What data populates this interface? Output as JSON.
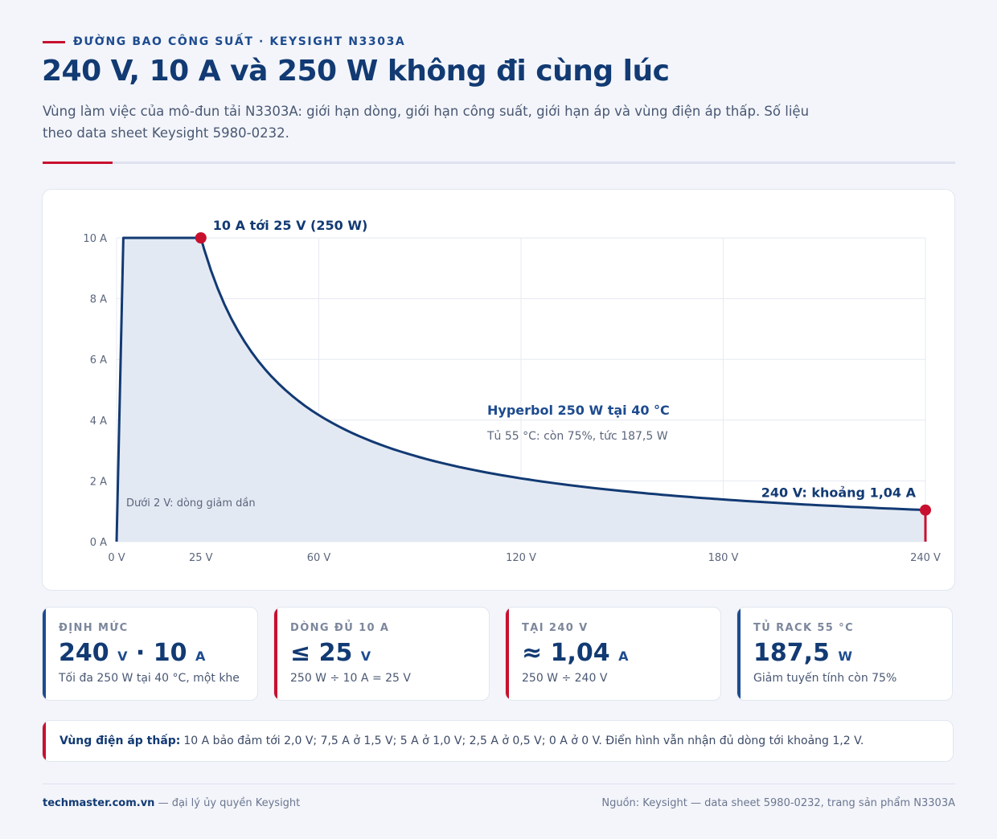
{
  "header": {
    "eyebrow": "ĐƯỜNG BAO CÔNG SUẤT · KEYSIGHT N3303A",
    "title": "240 V, 10 A và 250 W không đi cùng lúc",
    "subtitle": "Vùng làm việc của mô-đun tải N3303A: giới hạn dòng, giới hạn công suất, giới hạn áp và vùng điện áp thấp. Số liệu theo data sheet Keysight 5980-0232."
  },
  "colors": {
    "navy": "#123a73",
    "red": "#c8102e",
    "fill": "#e3e9f3",
    "grid": "#e6eaf1"
  },
  "chart_data": {
    "type": "area",
    "x_unit": "V",
    "y_unit": "A",
    "xlim": [
      0,
      240
    ],
    "ylim": [
      0,
      10
    ],
    "x_ticks": [
      0,
      25,
      60,
      120,
      180,
      240
    ],
    "y_ticks": [
      0,
      2,
      4,
      6,
      8,
      10
    ],
    "x_tick_labels": [
      "0 V",
      "25 V",
      "60 V",
      "120 V",
      "180 V",
      "240 V"
    ],
    "y_tick_labels": [
      "0 A",
      "2 A",
      "4 A",
      "6 A",
      "8 A",
      "10 A"
    ],
    "grid": true,
    "series": [
      {
        "x": [
          0,
          2,
          25,
          240
        ],
        "y": [
          0,
          10,
          10,
          1.04
        ],
        "segments": [
          "linear",
          "linear",
          "hyperbola P=250 W",
          "vertical drop to 0 A at 240 V"
        ]
      }
    ],
    "points": [
      {
        "x": 25,
        "y": 10,
        "label": "10 A tới 25 V (250 W)"
      },
      {
        "x": 240,
        "y": 1.04,
        "label": "240 V: khoảng 1,04 A"
      }
    ],
    "annotations": [
      {
        "text": "Hyperbol 250 W tại 40 °C",
        "style": "strong"
      },
      {
        "text": "Tủ 55 °C: còn 75%, tức 187,5 W",
        "style": "muted"
      },
      {
        "text": "Dưới 2 V: dòng giảm dần",
        "style": "small"
      }
    ]
  },
  "kpis": [
    {
      "label": "ĐỊNH MỨC",
      "value1": "240",
      "unit1": "V",
      "sep": "·",
      "value2": "10",
      "unit2": "A",
      "note": "Tối đa 250 W tại 40 °C, một khe",
      "accent": "#1d4b8f"
    },
    {
      "label": "DÒNG ĐỦ 10 A",
      "value": "≤ 25",
      "unit": "V",
      "note": "250 W ÷ 10 A = 25 V",
      "accent": "#c8102e"
    },
    {
      "label": "TẠI 240 V",
      "value": "≈ 1,04",
      "unit": "A",
      "note": "250 W ÷ 240 V",
      "accent": "#c8102e"
    },
    {
      "label": "TỦ RACK 55 °C",
      "value": "187,5",
      "unit": "W",
      "note": "Giảm tuyến tính còn 75%",
      "accent": "#1d4b8f"
    }
  ],
  "callout": {
    "label": "Vùng điện áp thấp:",
    "text": "10 A bảo đảm tới 2,0 V; 7,5 A ở 1,5 V; 5 A ở 1,0 V; 2,5 A ở 0,5 V; 0 A ở 0 V. Điển hình vẫn nhận đủ dòng tới khoảng 1,2 V."
  },
  "footer": {
    "brand": "techmaster.com.vn",
    "brand_note": "— đại lý ủy quyền Keysight",
    "source": "Nguồn: Keysight — data sheet 5980-0232, trang sản phẩm N3303A"
  }
}
